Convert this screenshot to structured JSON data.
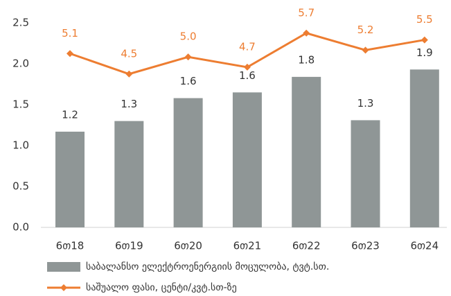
{
  "chart_data": {
    "type": "bar-line",
    "categories": [
      "6თ18",
      "6თ19",
      "6თ20",
      "6თ21",
      "6თ22",
      "6თ23",
      "6თ24"
    ],
    "series": [
      {
        "name": "საბალანსო ელექტროენერგიის მოცულობა, ტვტ.სთ.",
        "type": "bar",
        "color": "#8f9696",
        "values": [
          1.17,
          1.3,
          1.58,
          1.65,
          1.84,
          1.31,
          1.93
        ],
        "value_labels": [
          "1.2",
          "1.3",
          "1.6",
          "1.6",
          "1.8",
          "1.3",
          "1.9"
        ]
      },
      {
        "name": "საშუალო ფასი, ცენტი/კვტ.სთ-ზე",
        "type": "line",
        "axis": "y2",
        "color": "#ed7d31",
        "values": [
          5.1,
          4.5,
          5.0,
          4.7,
          5.7,
          5.2,
          5.5
        ],
        "value_labels": [
          "5.1",
          "4.5",
          "5.0",
          "4.7",
          "5.7",
          "5.2",
          "5.5"
        ]
      }
    ],
    "ylim": [
      0,
      2.5
    ],
    "yticks": [
      {
        "value": 0,
        "label": "0.0"
      },
      {
        "value": 0.5,
        "label": "0.5"
      },
      {
        "value": 1,
        "label": "1.0"
      },
      {
        "value": 1.5,
        "label": "1.5"
      },
      {
        "value": 2,
        "label": "2.0"
      },
      {
        "value": 2.5,
        "label": "2.5"
      }
    ],
    "y2lim": [
      0,
      6
    ],
    "legend": "bottom"
  }
}
